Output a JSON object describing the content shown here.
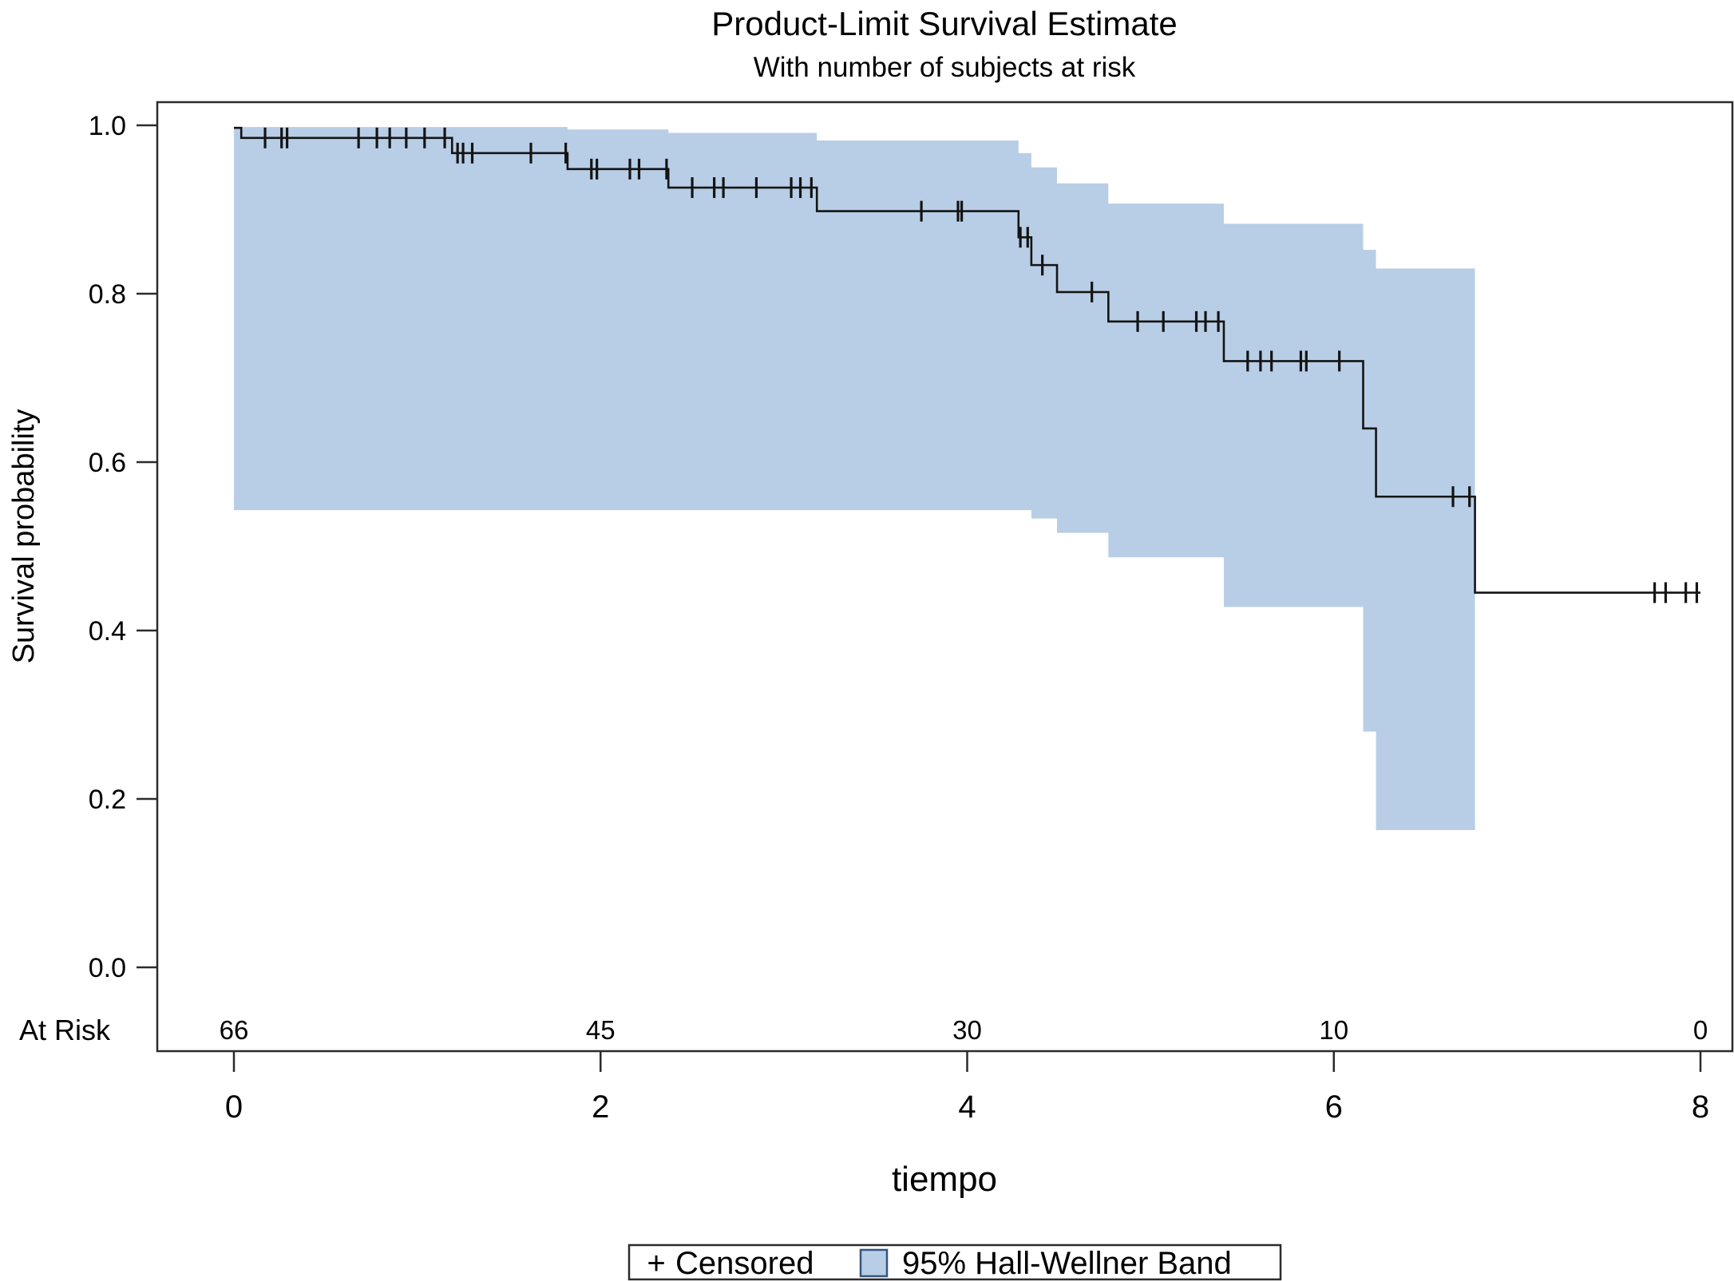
{
  "title": "Product-Limit Survival Estimate",
  "subtitle": "With number of subjects at risk",
  "y_axis": {
    "label": "Survival probability",
    "ticks": [
      1.0,
      0.8,
      0.6,
      0.4,
      0.2,
      0.0
    ]
  },
  "x_axis": {
    "label": "tiempo",
    "ticks": [
      0,
      2,
      4,
      6,
      8
    ]
  },
  "at_risk": {
    "label": "At Risk",
    "times": [
      0,
      2,
      4,
      6,
      8
    ],
    "counts": [
      66,
      45,
      30,
      10,
      0
    ]
  },
  "legend": {
    "censored_symbol": "+",
    "censored_label": "Censored",
    "band_label": "95% Hall-Wellner Band"
  },
  "colors": {
    "band_fill": "#b8cee6",
    "band_swatch_border": "#35567f",
    "curve": "#141414",
    "axis": "#2b2b2b",
    "text": "#000000"
  },
  "chart_data": {
    "type": "line",
    "subtype": "kaplan-meier-step",
    "title": "Product-Limit Survival Estimate",
    "subtitle": "With number of subjects at risk",
    "xlabel": "tiempo",
    "ylabel": "Survival probability",
    "xlim": [
      0,
      8
    ],
    "ylim": [
      0.0,
      1.0
    ],
    "grid": false,
    "legend_position": "bottom-center",
    "survival_steps": [
      {
        "t": 0.0,
        "s": 0.997
      },
      {
        "t": 0.04,
        "s": 0.985
      },
      {
        "t": 1.19,
        "s": 0.967
      },
      {
        "t": 1.82,
        "s": 0.948
      },
      {
        "t": 2.37,
        "s": 0.926
      },
      {
        "t": 3.18,
        "s": 0.898
      },
      {
        "t": 4.28,
        "s": 0.867
      },
      {
        "t": 4.35,
        "s": 0.834
      },
      {
        "t": 4.49,
        "s": 0.802
      },
      {
        "t": 4.77,
        "s": 0.767
      },
      {
        "t": 5.4,
        "s": 0.72
      },
      {
        "t": 6.16,
        "s": 0.64
      },
      {
        "t": 6.23,
        "s": 0.559
      },
      {
        "t": 6.77,
        "s": 0.445
      }
    ],
    "curve_end_time": 8.0,
    "censor_marks": [
      [
        0.17,
        0.985
      ],
      [
        0.26,
        0.985
      ],
      [
        0.29,
        0.985
      ],
      [
        0.68,
        0.985
      ],
      [
        0.78,
        0.985
      ],
      [
        0.85,
        0.985
      ],
      [
        0.94,
        0.985
      ],
      [
        1.04,
        0.985
      ],
      [
        1.15,
        0.985
      ],
      [
        1.22,
        0.967
      ],
      [
        1.25,
        0.967
      ],
      [
        1.3,
        0.967
      ],
      [
        1.62,
        0.967
      ],
      [
        1.81,
        0.967
      ],
      [
        1.95,
        0.948
      ],
      [
        1.98,
        0.948
      ],
      [
        2.16,
        0.948
      ],
      [
        2.21,
        0.948
      ],
      [
        2.36,
        0.948
      ],
      [
        2.5,
        0.926
      ],
      [
        2.62,
        0.926
      ],
      [
        2.67,
        0.926
      ],
      [
        2.85,
        0.926
      ],
      [
        3.04,
        0.926
      ],
      [
        3.09,
        0.926
      ],
      [
        3.15,
        0.926
      ],
      [
        3.75,
        0.898
      ],
      [
        3.95,
        0.898
      ],
      [
        3.97,
        0.898
      ],
      [
        4.29,
        0.867
      ],
      [
        4.33,
        0.867
      ],
      [
        4.41,
        0.834
      ],
      [
        4.68,
        0.802
      ],
      [
        4.93,
        0.767
      ],
      [
        5.07,
        0.767
      ],
      [
        5.25,
        0.767
      ],
      [
        5.3,
        0.767
      ],
      [
        5.37,
        0.767
      ],
      [
        5.53,
        0.72
      ],
      [
        5.6,
        0.72
      ],
      [
        5.66,
        0.72
      ],
      [
        5.82,
        0.72
      ],
      [
        5.85,
        0.72
      ],
      [
        6.03,
        0.72
      ],
      [
        6.65,
        0.559
      ],
      [
        6.74,
        0.559
      ],
      [
        7.75,
        0.445
      ],
      [
        7.81,
        0.445
      ],
      [
        7.92,
        0.445
      ],
      [
        7.98,
        0.445
      ]
    ],
    "band": {
      "name": "95% Hall-Wellner Band",
      "upper": [
        {
          "t": 0.0,
          "v": 0.998
        },
        {
          "t": 1.82,
          "v": 0.995
        },
        {
          "t": 2.37,
          "v": 0.991
        },
        {
          "t": 3.18,
          "v": 0.982
        },
        {
          "t": 4.28,
          "v": 0.967
        },
        {
          "t": 4.35,
          "v": 0.95
        },
        {
          "t": 4.49,
          "v": 0.931
        },
        {
          "t": 4.77,
          "v": 0.907
        },
        {
          "t": 5.4,
          "v": 0.883
        },
        {
          "t": 6.16,
          "v": 0.852
        },
        {
          "t": 6.23,
          "v": 0.83
        }
      ],
      "lower": [
        {
          "t": 0.0,
          "v": 0.543
        },
        {
          "t": 4.35,
          "v": 0.533
        },
        {
          "t": 4.49,
          "v": 0.516
        },
        {
          "t": 4.77,
          "v": 0.487
        },
        {
          "t": 5.4,
          "v": 0.428
        },
        {
          "t": 6.16,
          "v": 0.28
        },
        {
          "t": 6.23,
          "v": 0.163
        }
      ],
      "end_time": 6.77
    }
  }
}
